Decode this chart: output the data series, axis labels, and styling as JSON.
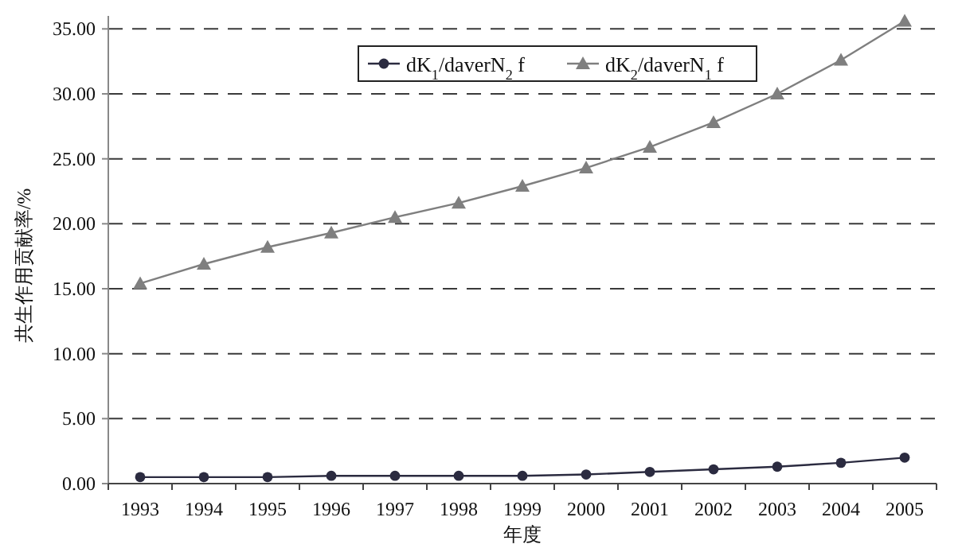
{
  "chart_data": {
    "type": "line",
    "xlabel": "年度",
    "ylabel": "共生作用贡献率/%",
    "categories": [
      "1993",
      "1994",
      "1995",
      "1996",
      "1997",
      "1998",
      "1999",
      "2000",
      "2001",
      "2002",
      "2003",
      "2004",
      "2005"
    ],
    "series": [
      {
        "name": "dK$_{1}$/daverN$_{2}$ f",
        "color": "#2b2b40",
        "marker": "circle",
        "values": [
          0.5,
          0.5,
          0.5,
          0.6,
          0.6,
          0.6,
          0.6,
          0.7,
          0.9,
          1.1,
          1.3,
          1.6,
          2.0
        ]
      },
      {
        "name": "dK$_{2}$/daverN$_{1}$ f",
        "color": "#7f7f7f",
        "marker": "triangle",
        "values": [
          15.4,
          16.9,
          18.2,
          19.3,
          20.5,
          21.6,
          22.9,
          24.3,
          25.9,
          27.8,
          30.0,
          32.6,
          35.6
        ]
      }
    ],
    "ylim": [
      0,
      36
    ],
    "yticks": [
      {
        "value": 0,
        "label": "0.00"
      },
      {
        "value": 5,
        "label": "5.00"
      },
      {
        "value": 10,
        "label": "10.00"
      },
      {
        "value": 15,
        "label": "15.00"
      },
      {
        "value": 20,
        "label": "20.00"
      },
      {
        "value": 25,
        "label": "25.00"
      },
      {
        "value": 30,
        "label": "30.00"
      },
      {
        "value": 35,
        "label": "35.00"
      }
    ],
    "grid": "y",
    "legend": "top"
  }
}
